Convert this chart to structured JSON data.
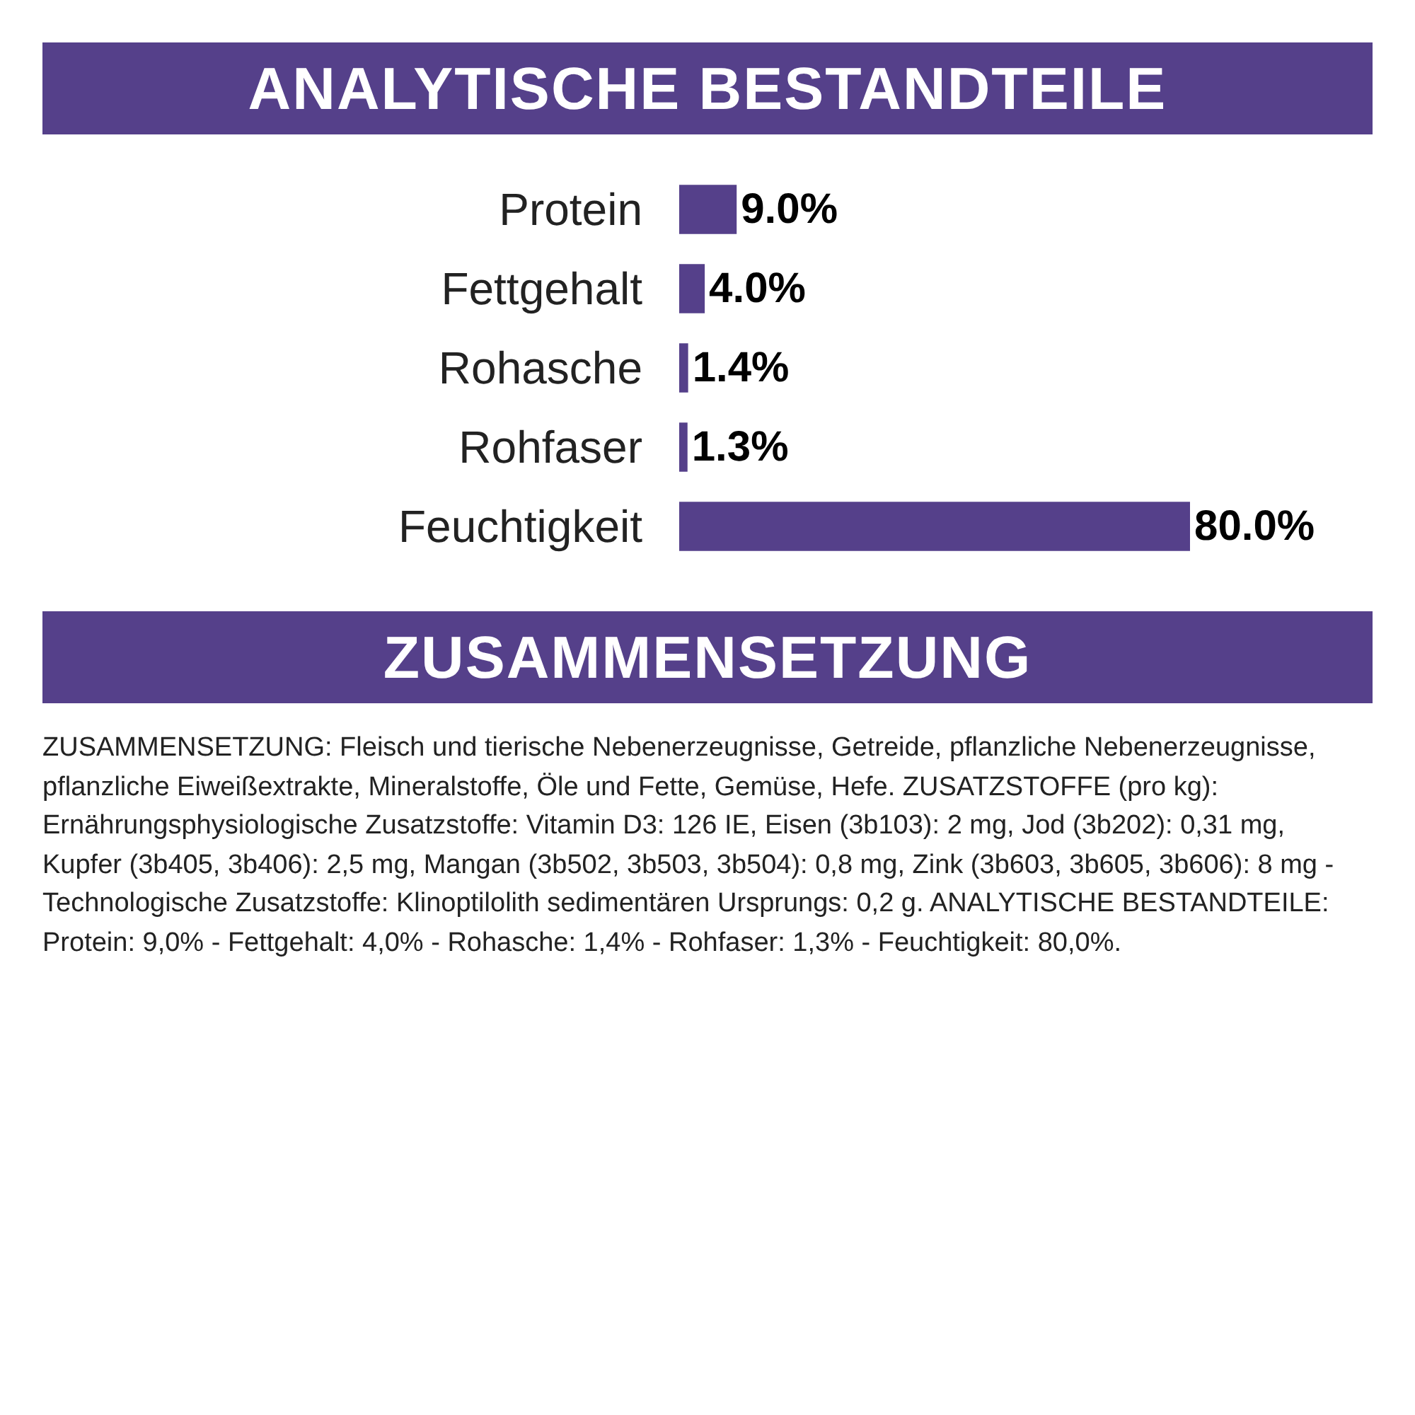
{
  "chart_data": {
    "type": "bar",
    "orientation": "horizontal",
    "title": "ANALYTISCHE BESTANDTEILE",
    "subtitle": "ZUSAMMENSETZUNG",
    "categories": [
      "Protein",
      "Fettgehalt",
      "Rohasche",
      "Rohfaser",
      "Feuchtigkeit"
    ],
    "values": [
      9.0,
      4.0,
      1.4,
      1.3,
      80.0
    ],
    "value_labels": [
      "9.0%",
      "4.0%",
      "1.4%",
      "1.3%",
      "80.0%"
    ],
    "color": "#55408a",
    "tick_labels": "y",
    "grid": false,
    "legend": false,
    "annotations": [
      "ZUSAMMENSETZUNG: Fleisch und tierische Nebenerzeugnisse, Getreide, pflanzliche Nebenerzeugnisse, pflanzliche Eiweißextrakte, Mineralstoffe, Öle und Fette, Gemüse, Hefe. ZUSATZSTOFFE (pro kg): Ernährungsphysiologische Zusatzstoffe: Vitamin D3: 126 IE, Eisen (3b103): 2 mg, Jod (3b202): 0,31 mg, Kupfer (3b405, 3b406): 2,5 mg, Mangan (3b502, 3b503, 3b504): 0,8 mg, Zink (3b603, 3b605, 3b606): 8 mg - Technologische Zusatzstoffe: Klinoptilolith sedimentären Ursprungs: 0,2 g. ANALYTISCHE BESTANDTEILE: Protein: 9,0% - Fettgehalt: 4,0% - Rohasche: 1,4% - Rohfaser: 1,3% - Feuchtigkeit: 80,0%."
    ]
  }
}
